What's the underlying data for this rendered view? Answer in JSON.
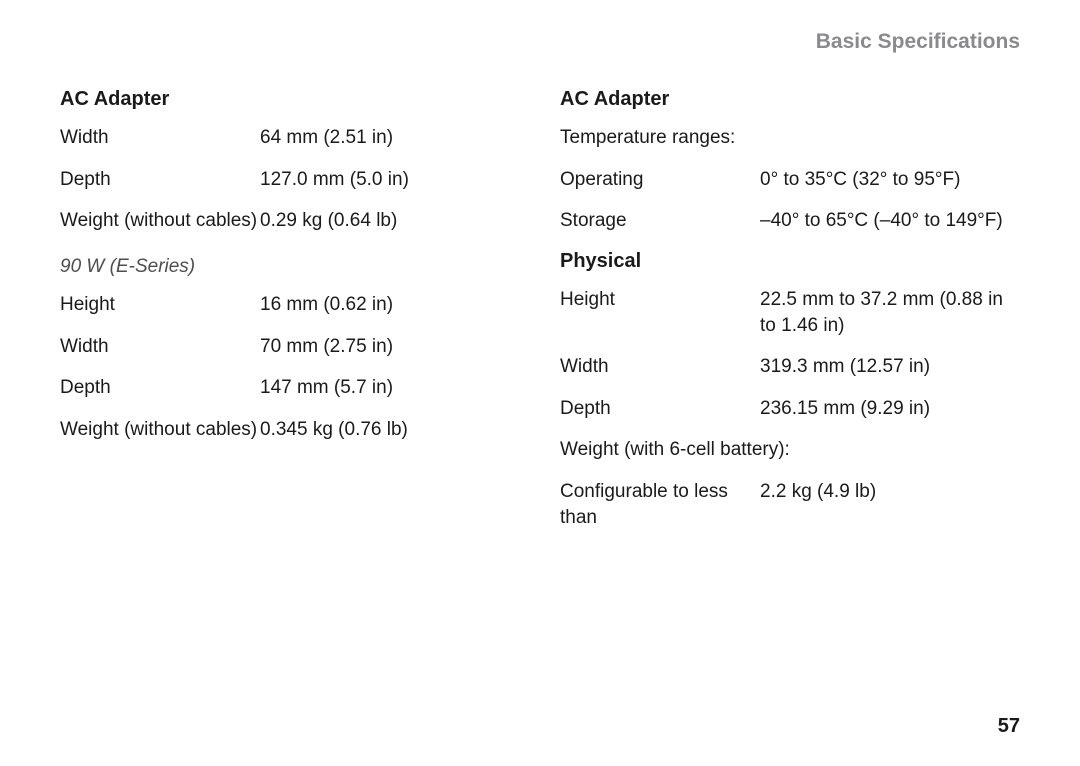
{
  "header": "Basic Specifications",
  "pageNumber": "57",
  "left": {
    "title": "AC Adapter",
    "rows1": [
      {
        "label": "Width",
        "value": "64 mm (2.51 in)"
      },
      {
        "label": "Depth",
        "value": "127.0 mm (5.0 in)"
      },
      {
        "label": "Weight (without cables)",
        "value": "0.29 kg (0.64 lb)"
      }
    ],
    "subheading": "90 W (E-Series)",
    "rows2": [
      {
        "label": "Height",
        "value": "16 mm (0.62 in)"
      },
      {
        "label": "Width",
        "value": "70 mm (2.75 in)"
      },
      {
        "label": "Depth",
        "value": "147 mm (5.7 in)"
      },
      {
        "label": "Weight (without cables)",
        "value": "0.345 kg (0.76 lb)"
      }
    ]
  },
  "right": {
    "title1": "AC Adapter",
    "tempHeader": "Temperature ranges:",
    "tempRows": [
      {
        "label": "Operating",
        "value": "0° to 35°C (32° to 95°F)"
      },
      {
        "label": "Storage",
        "value": "–40° to 65°C (–40° to 149°F)"
      }
    ],
    "title2": "Physical",
    "physRows": [
      {
        "label": "Height",
        "value": "22.5 mm to 37.2 mm (0.88 in to 1.46 in)"
      },
      {
        "label": "Width",
        "value": "319.3 mm (12.57 in)"
      },
      {
        "label": "Depth",
        "value": "236.15 mm (9.29 in)"
      }
    ],
    "weightHeader": "Weight (with 6-cell battery):",
    "weightRows": [
      {
        "label": "Configurable to less than",
        "value": "2.2 kg (4.9 lb)"
      }
    ]
  }
}
